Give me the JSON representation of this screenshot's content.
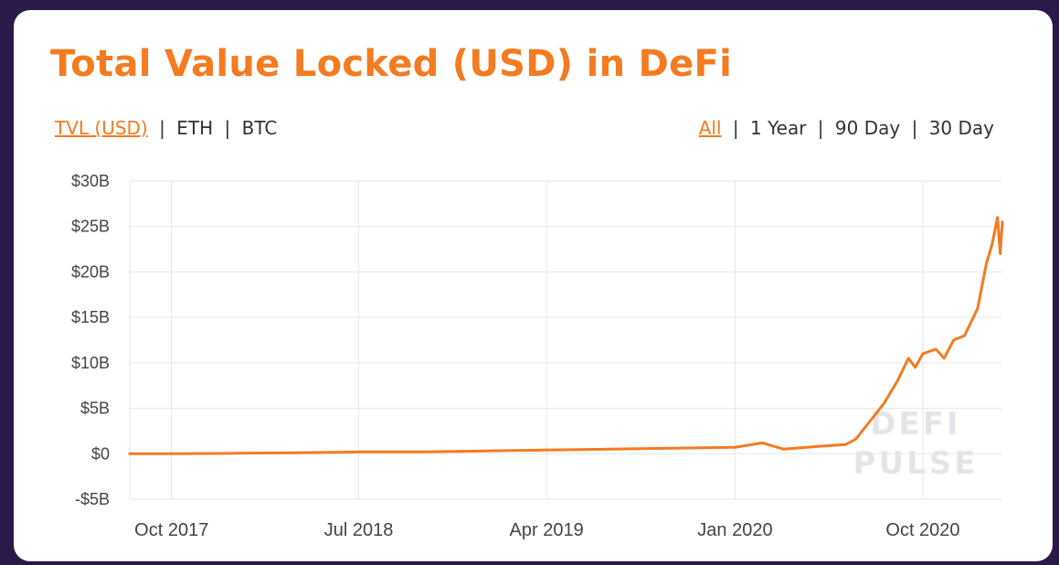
{
  "title": "Total Value Locked (USD) in DeFi",
  "metric_toggles": [
    {
      "label": "TVL (USD)",
      "active": true
    },
    {
      "label": "ETH",
      "active": false
    },
    {
      "label": "BTC",
      "active": false
    }
  ],
  "range_toggles": [
    {
      "label": "All",
      "active": true
    },
    {
      "label": "1 Year",
      "active": false
    },
    {
      "label": "90 Day",
      "active": false
    },
    {
      "label": "30 Day",
      "active": false
    }
  ],
  "separator": "|",
  "watermark": [
    "DEFI",
    "PULSE"
  ],
  "colors": {
    "accent": "#f47b20",
    "line": "#f47b20",
    "background": "#2a1a4a",
    "grid": "#e6e6e6"
  },
  "chart_data": {
    "type": "line",
    "title": "",
    "xlabel": "",
    "ylabel": "",
    "ylim": [
      -5,
      30
    ],
    "xlim": [
      "2017-08-01",
      "2021-01-25"
    ],
    "y_ticks": [
      {
        "value": 30,
        "label": "$30B"
      },
      {
        "value": 25,
        "label": "$25B"
      },
      {
        "value": 20,
        "label": "$20B"
      },
      {
        "value": 15,
        "label": "$15B"
      },
      {
        "value": 10,
        "label": "$10B"
      },
      {
        "value": 5,
        "label": "$5B"
      },
      {
        "value": 0,
        "label": "$0"
      },
      {
        "value": -5,
        "label": "-$5B"
      }
    ],
    "x_ticks": [
      {
        "value": "2017-10-01",
        "label": "Oct 2017"
      },
      {
        "value": "2018-07-01",
        "label": "Jul 2018"
      },
      {
        "value": "2019-04-01",
        "label": "Apr 2019"
      },
      {
        "value": "2020-01-01",
        "label": "Jan 2020"
      },
      {
        "value": "2020-10-01",
        "label": "Oct 2020"
      }
    ],
    "grid": true,
    "legend": "none",
    "series": [
      {
        "unit": "$B",
        "points": [
          [
            "2017-08-01",
            0.0
          ],
          [
            "2017-10-01",
            0.0
          ],
          [
            "2018-01-01",
            0.05
          ],
          [
            "2018-04-01",
            0.1
          ],
          [
            "2018-07-01",
            0.2
          ],
          [
            "2018-10-01",
            0.2
          ],
          [
            "2019-01-01",
            0.3
          ],
          [
            "2019-04-01",
            0.4
          ],
          [
            "2019-07-01",
            0.5
          ],
          [
            "2019-10-01",
            0.6
          ],
          [
            "2020-01-01",
            0.7
          ],
          [
            "2020-02-10",
            1.2
          ],
          [
            "2020-03-12",
            0.5
          ],
          [
            "2020-05-01",
            0.8
          ],
          [
            "2020-06-10",
            1.0
          ],
          [
            "2020-06-25",
            1.6
          ],
          [
            "2020-07-15",
            3.5
          ],
          [
            "2020-08-05",
            5.5
          ],
          [
            "2020-08-25",
            8.0
          ],
          [
            "2020-09-10",
            10.5
          ],
          [
            "2020-09-20",
            9.5
          ],
          [
            "2020-10-01",
            11.0
          ],
          [
            "2020-10-20",
            11.5
          ],
          [
            "2020-11-01",
            10.5
          ],
          [
            "2020-11-15",
            12.5
          ],
          [
            "2020-12-01",
            13.0
          ],
          [
            "2020-12-20",
            16.0
          ],
          [
            "2021-01-02",
            21.0
          ],
          [
            "2021-01-10",
            23.0
          ],
          [
            "2021-01-18",
            26.0
          ],
          [
            "2021-01-22",
            22.0
          ],
          [
            "2021-01-25",
            25.5
          ]
        ]
      }
    ]
  }
}
